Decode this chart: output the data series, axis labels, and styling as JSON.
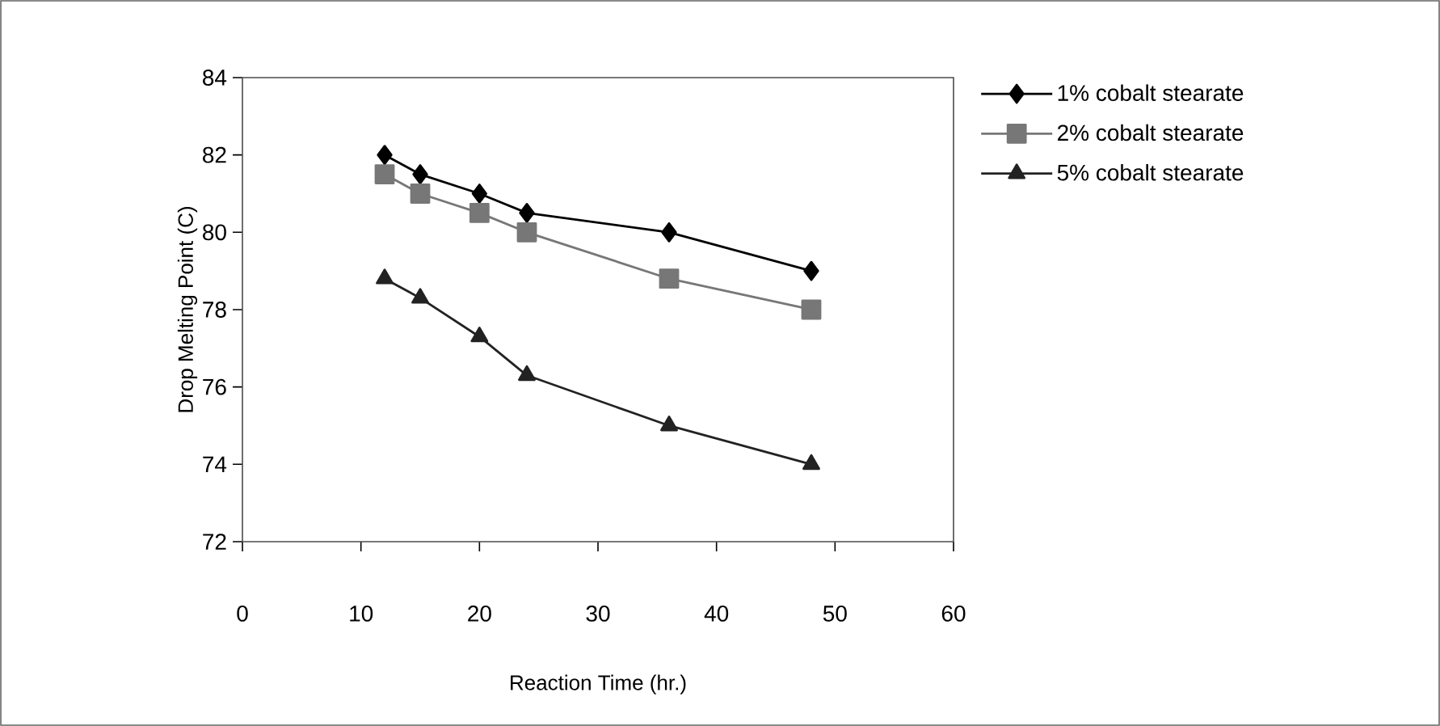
{
  "chart_data": {
    "type": "line",
    "xlabel": "Reaction Time (hr.)",
    "ylabel": "Drop Melting Point (C)",
    "xlim": [
      0,
      60
    ],
    "xticks": [
      0,
      10,
      20,
      30,
      40,
      50,
      60
    ],
    "ylim": [
      72,
      84
    ],
    "yticks": [
      72,
      74,
      76,
      78,
      80,
      82,
      84
    ],
    "grid": false,
    "legend": "right",
    "series": [
      {
        "name": "1% cobalt stearate",
        "color": "#000000",
        "marker": "diamond",
        "x": [
          12,
          15,
          20,
          24,
          36,
          48
        ],
        "values": [
          82,
          81.5,
          81,
          80.5,
          80,
          79
        ]
      },
      {
        "name": "2% cobalt stearate",
        "color": "#777777",
        "marker": "square",
        "x": [
          12,
          15,
          20,
          24,
          36,
          48
        ],
        "values": [
          81.5,
          81,
          80.5,
          80,
          78.8,
          78
        ]
      },
      {
        "name": "5% cobalt stearate",
        "color": "#222222",
        "marker": "triangle",
        "x": [
          12,
          15,
          20,
          24,
          36,
          48
        ],
        "values": [
          78.8,
          78.3,
          77.3,
          76.3,
          75,
          74
        ]
      }
    ]
  }
}
